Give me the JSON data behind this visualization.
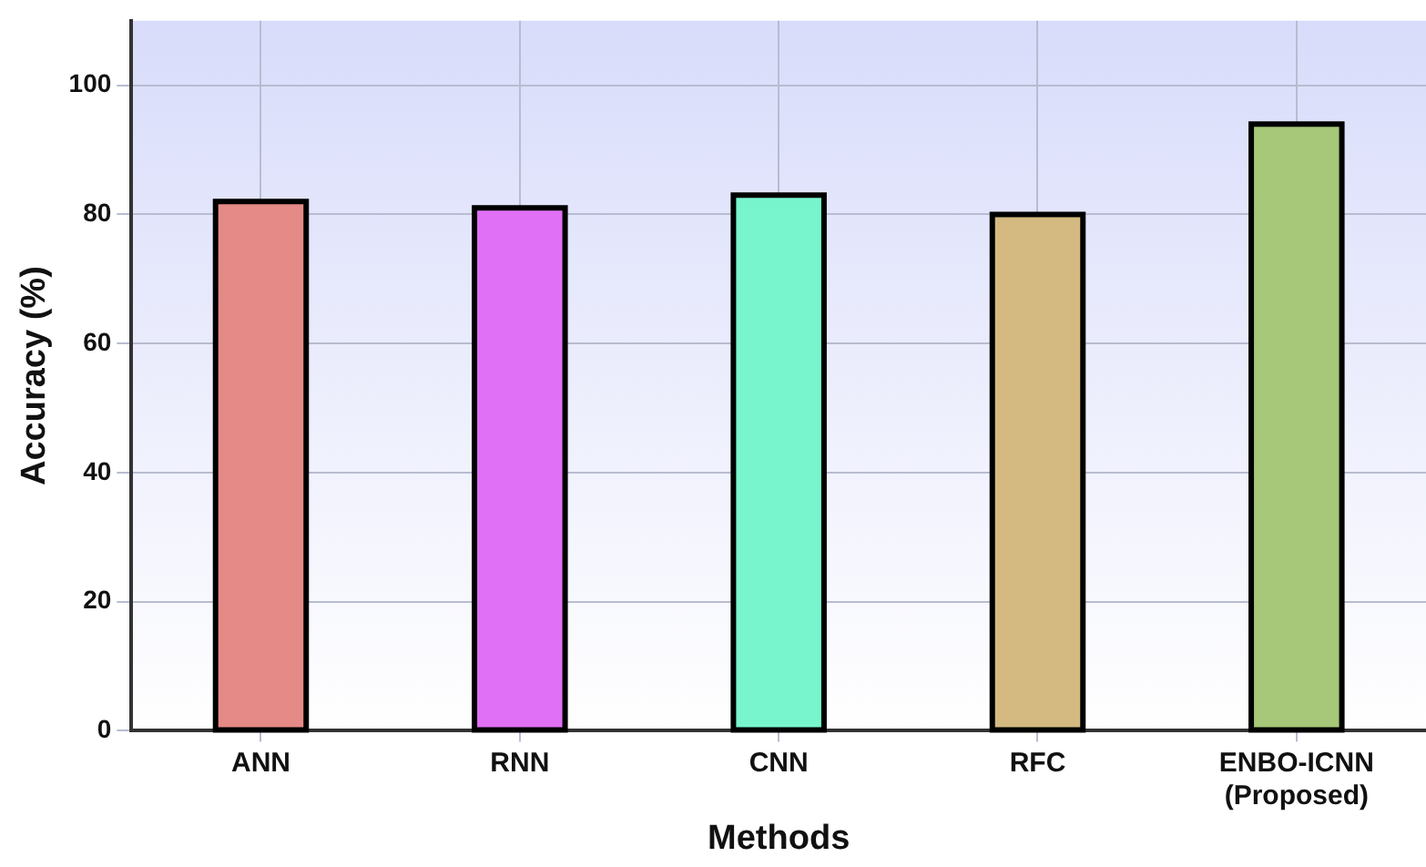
{
  "chart_data": {
    "type": "bar",
    "xlabel": "Methods",
    "ylabel": "Accuracy (%)",
    "categories": [
      "ANN",
      "RNN",
      "CNN",
      "RFC",
      "ENBO-ICNN (Proposed)"
    ],
    "values": [
      82,
      81,
      83,
      80,
      94
    ],
    "colors": [
      "#e58a86",
      "#e070f5",
      "#78f5cc",
      "#d4ba80",
      "#a6c878"
    ],
    "ylim": [
      0,
      110
    ],
    "yticks": [
      0,
      20,
      40,
      60,
      80,
      100
    ],
    "grid": true,
    "legend": false
  }
}
